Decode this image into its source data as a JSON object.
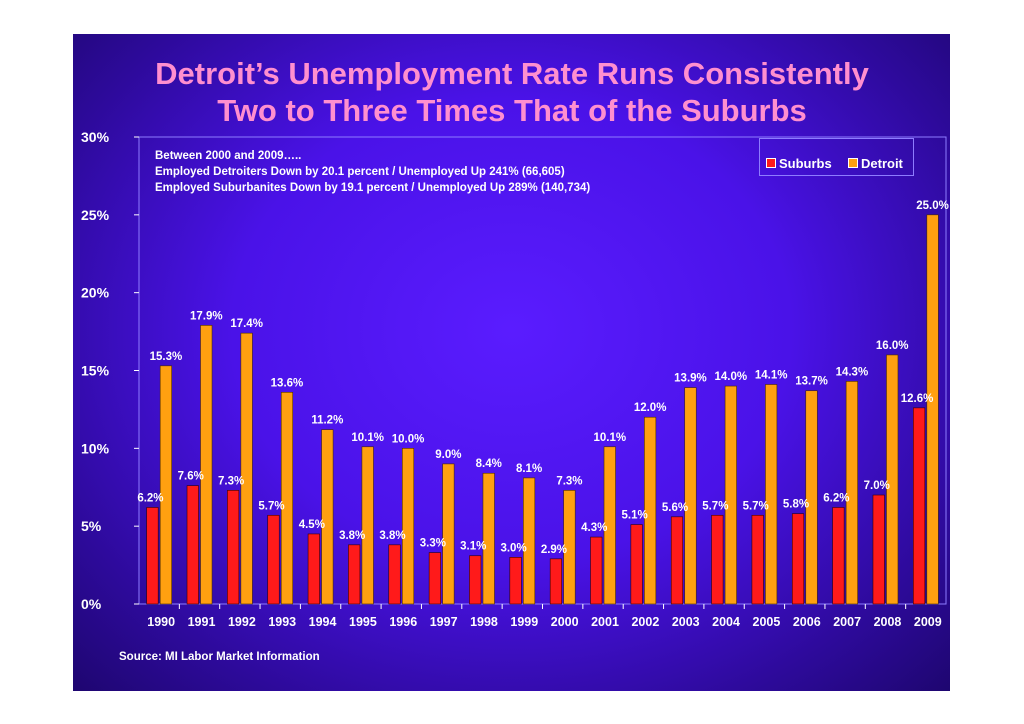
{
  "title_line1": "Detroit’s Unemployment Rate Runs Consistently",
  "title_line2": "Two to Three Times That of the Suburbs",
  "notes": [
    "Between 2000 and 2009…..",
    "Employed Detroiters Down by 20.1 percent / Unemployed Up 241%  (66,605)",
    "Employed Suburbanites Down by 19.1 percent / Unemployed Up 289% (140,734)"
  ],
  "source": "Source:  MI Labor Market Information",
  "colors": {
    "suburbs": "#ff1a1a",
    "detroit": "#ffa010",
    "label": "#ffffff",
    "title": "#ff8fcf"
  },
  "chart_data": {
    "type": "bar",
    "title": "Detroit’s Unemployment Rate Runs Consistently Two to Three Times That of the Suburbs",
    "categories": [
      "1990",
      "1991",
      "1992",
      "1993",
      "1994",
      "1995",
      "1996",
      "1997",
      "1998",
      "1999",
      "2000",
      "2001",
      "2002",
      "2003",
      "2004",
      "2005",
      "2006",
      "2007",
      "2008",
      "2009"
    ],
    "series": [
      {
        "name": "Suburbs",
        "values": [
          6.2,
          7.6,
          7.3,
          5.7,
          4.5,
          3.8,
          3.8,
          3.3,
          3.1,
          3.0,
          2.9,
          4.3,
          5.1,
          5.6,
          5.7,
          5.7,
          5.8,
          6.2,
          7.0,
          12.6
        ]
      },
      {
        "name": "Detroit",
        "values": [
          15.3,
          17.9,
          17.4,
          13.6,
          11.2,
          10.1,
          10.0,
          9.0,
          8.4,
          8.1,
          7.3,
          10.1,
          12.0,
          13.9,
          14.0,
          14.1,
          13.7,
          14.3,
          16.0,
          25.0
        ]
      }
    ],
    "ylim": [
      0,
      30
    ],
    "yticks": [
      "0%",
      "5%",
      "10%",
      "15%",
      "20%",
      "25%",
      "30%"
    ],
    "legend": [
      "Suburbs",
      "Detroit"
    ],
    "legend_position": "top-right",
    "grid": false
  }
}
